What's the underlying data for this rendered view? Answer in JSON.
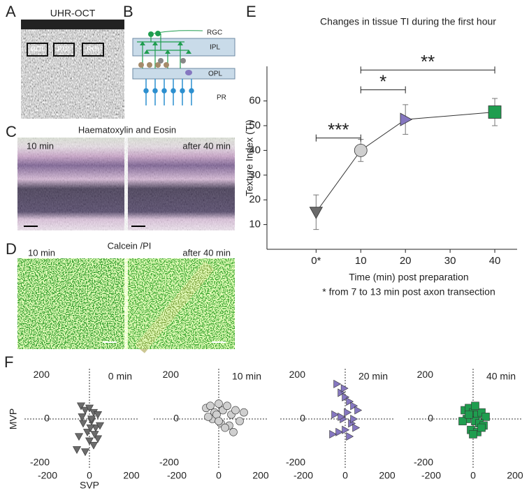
{
  "panel_letters": [
    "A",
    "B",
    "C",
    "D",
    "E",
    "F"
  ],
  "panel_A": {
    "title": "UHR-OCT",
    "roi_labels": [
      "ROI",
      "ROI",
      "ROI"
    ]
  },
  "panel_B": {
    "labels": [
      "RGC",
      "IPL",
      "OPL",
      "PR"
    ]
  },
  "panel_C": {
    "title": "Haematoxylin and Eosin",
    "left_label": "10 min",
    "right_label": "after 40 min"
  },
  "panel_D": {
    "title": "Calcein /PI",
    "left_label": "10 min",
    "right_label": "after 40 min"
  },
  "chart_data": [
    {
      "type": "line",
      "title": "Changes in tissue TI during the first hour",
      "ylabel": "Texture Index (TI)",
      "xlabel": "Time (min) post preparation",
      "note": "* from 7 to 13 min post axon transection",
      "x": [
        0,
        10,
        20,
        40
      ],
      "values": [
        15,
        40,
        52.5,
        55.5
      ],
      "errors": [
        7,
        4.5,
        6,
        5.5
      ],
      "markers": [
        "triangle-down",
        "circle",
        "triangle-right",
        "square"
      ],
      "marker_colors": [
        "#6b6b6b",
        "#cfcfcf",
        "#8577c0",
        "#1f9d4f"
      ],
      "xlim": [
        -11,
        45
      ],
      "xticks": [
        {
          "value": 0,
          "label": "0*"
        },
        10,
        20,
        30,
        40
      ],
      "ylim": [
        0,
        74
      ],
      "yticks": [
        10,
        20,
        30,
        40,
        50,
        60
      ],
      "annotations": [
        {
          "text": "***",
          "x": [
            0,
            10
          ],
          "y": 45
        },
        {
          "text": "*",
          "x": [
            10,
            20
          ],
          "y": 64.5
        },
        {
          "text": "**",
          "x": [
            10,
            40
          ],
          "y": 72.5
        }
      ]
    },
    {
      "type": "scatter",
      "label": "0 min",
      "xlabel": "SVP",
      "ylabel": "MVP",
      "marker": "triangle-down",
      "color": "#6b6b6b",
      "x": [
        -40,
        -20,
        0,
        20,
        40,
        -30,
        10,
        30,
        -10,
        50,
        -50,
        0,
        20,
        -20,
        40,
        -60,
        10,
        -35,
        25,
        5
      ],
      "values": [
        60,
        40,
        50,
        30,
        20,
        -20,
        -10,
        -40,
        -60,
        -30,
        -80,
        -100,
        -120,
        -150,
        -90,
        -140,
        0,
        10,
        -70,
        -40
      ],
      "xlim": [
        -310,
        230
      ],
      "ylim": [
        -230,
        230
      ],
      "xticks": [
        -200,
        0,
        200
      ],
      "yticks": [
        -200,
        0,
        200
      ]
    },
    {
      "type": "scatter",
      "label": "10 min",
      "marker": "circle",
      "color": "#cfcfcf",
      "x": [
        -60,
        -40,
        -20,
        0,
        20,
        40,
        60,
        80,
        100,
        -30,
        10,
        50,
        120,
        -10,
        30,
        70,
        -50,
        0
      ],
      "values": [
        50,
        60,
        30,
        70,
        40,
        60,
        20,
        40,
        -10,
        0,
        -20,
        -30,
        30,
        20,
        -40,
        -60,
        10,
        -10
      ],
      "xlim": [
        -310,
        230
      ],
      "ylim": [
        -230,
        230
      ],
      "xticks": [
        -200,
        0,
        200
      ],
      "yticks": [
        -200,
        0,
        200
      ]
    },
    {
      "type": "scatter",
      "label": "20 min",
      "marker": "triangle-right",
      "color": "#8577c0",
      "x": [
        -40,
        -20,
        0,
        20,
        40,
        60,
        -50,
        -10,
        30,
        50,
        -30,
        10,
        -20,
        0,
        40,
        -60,
        20,
        -5
      ],
      "values": [
        160,
        120,
        100,
        80,
        60,
        40,
        20,
        0,
        -20,
        -40,
        -60,
        30,
        10,
        -50,
        0,
        -70,
        -80,
        140
      ],
      "xlim": [
        -310,
        230
      ],
      "ylim": [
        -230,
        230
      ],
      "xticks": [
        -200,
        0,
        200
      ],
      "yticks": [
        -200,
        0,
        200
      ]
    },
    {
      "type": "scatter",
      "label": "40 min",
      "marker": "square",
      "color": "#1f9d4f",
      "x": [
        -40,
        -20,
        0,
        20,
        40,
        60,
        -30,
        10,
        30,
        50,
        -10,
        -50,
        20,
        0,
        -20,
        40,
        10
      ],
      "values": [
        40,
        50,
        30,
        20,
        30,
        10,
        0,
        -10,
        -20,
        -30,
        -50,
        -10,
        -60,
        -70,
        20,
        -40,
        60
      ],
      "xlim": [
        -310,
        230
      ],
      "ylim": [
        -230,
        230
      ],
      "xticks": [
        -200,
        0,
        200
      ],
      "yticks": [
        -200,
        0,
        200
      ]
    }
  ]
}
